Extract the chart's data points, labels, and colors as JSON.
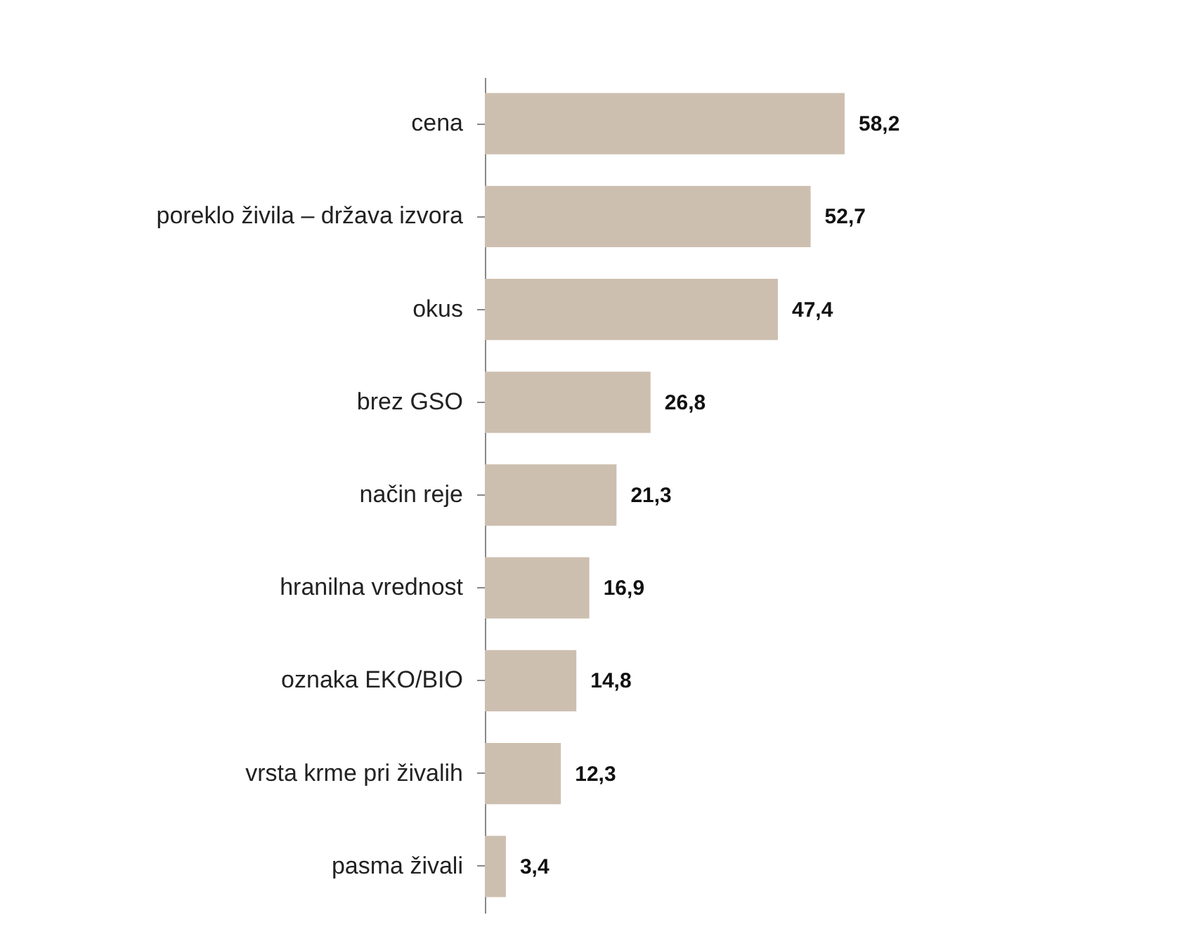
{
  "chart_data": {
    "type": "bar",
    "orientation": "horizontal",
    "categories": [
      "cena",
      "poreklo živila – država izvora",
      "okus",
      "brez GSO",
      "način reje",
      "hranilna vrednost",
      "oznaka EKO/BIO",
      "vrsta krme pri živalih",
      "pasma živali"
    ],
    "values": [
      58.2,
      52.7,
      47.4,
      26.8,
      21.3,
      16.9,
      14.8,
      12.3,
      3.4
    ],
    "value_labels": [
      "58,2",
      "52,7",
      "47,4",
      "26,8",
      "21,3",
      "16,9",
      "14,8",
      "12,3",
      "3,4"
    ],
    "color": "#cdbfb0"
  }
}
